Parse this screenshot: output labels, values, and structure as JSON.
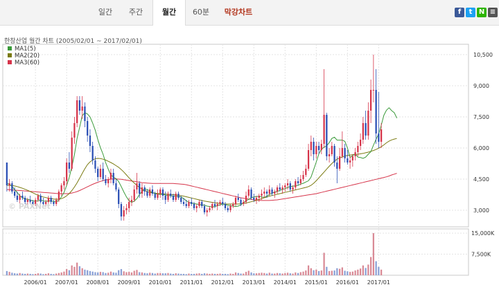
{
  "tabs": [
    {
      "label": "일간"
    },
    {
      "label": "주간"
    },
    {
      "label": "월간",
      "active": true
    },
    {
      "label": "60분"
    },
    {
      "label": "막강차트"
    }
  ],
  "share": [
    {
      "name": "facebook-icon",
      "glyph": "f",
      "color": "#3b5998"
    },
    {
      "name": "twitter-icon",
      "glyph": "t",
      "color": "#1da1f2"
    },
    {
      "name": "naver-icon",
      "glyph": "N",
      "color": "#2db400"
    },
    {
      "name": "share-more-icon",
      "glyph": "≡",
      "color": "#555555"
    }
  ],
  "chart_title": "한창산업 월간 차트 (2005/02/01 ~ 2017/02/01)",
  "watermark": "© PAXNet",
  "chart_data": {
    "type": "candlestick",
    "legend": [
      {
        "name": "MA1(5)",
        "color": "#3a9a3a"
      },
      {
        "name": "MA2(20)",
        "color": "#7a7a10"
      },
      {
        "name": "MA3(60)",
        "color": "#d6344a"
      }
    ],
    "x_ticks": [
      "2006/01",
      "2007/01",
      "2008/01",
      "2009/01",
      "2010/01",
      "2011/01",
      "2012/01",
      "2013/01",
      "2014/01",
      "2015/01",
      "2016/01",
      "2017/01"
    ],
    "y_ticks": [
      "10,500",
      "9,000",
      "7,500",
      "6,000",
      "4,500",
      "3,000"
    ],
    "y_tick_values": [
      10500,
      9000,
      7500,
      6000,
      4500,
      3000
    ],
    "ylim": [
      2200,
      11000
    ],
    "volume_ticks": [
      "15,000K",
      "7,500K"
    ],
    "volume_tick_values": [
      15000,
      7500
    ],
    "volume_ylim": [
      0,
      16500
    ],
    "up_color": "#d6344a",
    "down_color": "#2a4fb5",
    "start_month": "2005-02",
    "candles": [
      [
        5300,
        5300,
        3900,
        4200
      ],
      [
        4200,
        4500,
        3900,
        4300
      ],
      [
        4300,
        4400,
        3800,
        3900
      ],
      [
        3900,
        4100,
        3600,
        3700
      ],
      [
        3700,
        3900,
        3400,
        3500
      ],
      [
        3500,
        3800,
        3300,
        3700
      ],
      [
        3700,
        3900,
        3500,
        3600
      ],
      [
        3600,
        3700,
        3300,
        3400
      ],
      [
        3400,
        3600,
        3200,
        3500
      ],
      [
        3500,
        3700,
        3300,
        3400
      ],
      [
        3400,
        3500,
        3200,
        3300
      ],
      [
        3300,
        3600,
        3200,
        3500
      ],
      [
        3500,
        3800,
        3400,
        3700
      ],
      [
        3700,
        3800,
        3300,
        3400
      ],
      [
        3400,
        3600,
        3200,
        3300
      ],
      [
        3300,
        3500,
        3200,
        3400
      ],
      [
        3400,
        3700,
        3300,
        3600
      ],
      [
        3600,
        3700,
        3300,
        3400
      ],
      [
        3400,
        3500,
        3200,
        3300
      ],
      [
        3300,
        3600,
        3200,
        3500
      ],
      [
        3500,
        4000,
        3400,
        3900
      ],
      [
        3900,
        4300,
        3700,
        4200
      ],
      [
        4200,
        4600,
        4000,
        4400
      ],
      [
        4400,
        5500,
        4200,
        5300
      ],
      [
        5300,
        5800,
        4800,
        5000
      ],
      [
        5000,
        6800,
        4900,
        6500
      ],
      [
        6500,
        7500,
        6200,
        7200
      ],
      [
        7200,
        8500,
        7000,
        8300
      ],
      [
        8300,
        8500,
        7600,
        7800
      ],
      [
        7800,
        8500,
        7400,
        8000
      ],
      [
        8000,
        8200,
        7000,
        7300
      ],
      [
        7300,
        7500,
        6300,
        6600
      ],
      [
        6600,
        6900,
        5800,
        6100
      ],
      [
        6100,
        6300,
        5200,
        5400
      ],
      [
        5400,
        5600,
        4800,
        5000
      ],
      [
        5000,
        5100,
        4400,
        4600
      ],
      [
        4600,
        5200,
        4500,
        5000
      ],
      [
        5000,
        5300,
        4400,
        4500
      ],
      [
        4500,
        4700,
        4200,
        4300
      ],
      [
        4300,
        4600,
        4100,
        4500
      ],
      [
        4500,
        5000,
        4300,
        4800
      ],
      [
        4800,
        5000,
        4200,
        4300
      ],
      [
        4300,
        4500,
        3900,
        4000
      ],
      [
        4000,
        4100,
        3100,
        3300
      ],
      [
        3300,
        3400,
        2500,
        2700
      ],
      [
        2700,
        3200,
        2500,
        3000
      ],
      [
        3000,
        3300,
        2800,
        3100
      ],
      [
        3100,
        3600,
        2900,
        3400
      ],
      [
        3400,
        3700,
        3200,
        3500
      ],
      [
        3500,
        4200,
        3400,
        4000
      ],
      [
        4000,
        4800,
        3800,
        4300
      ],
      [
        4300,
        4400,
        3600,
        3800
      ],
      [
        3800,
        4300,
        3600,
        4100
      ],
      [
        4100,
        4200,
        3700,
        3900
      ],
      [
        3900,
        4000,
        3600,
        3700
      ],
      [
        3700,
        4100,
        3600,
        4000
      ],
      [
        4000,
        4200,
        3700,
        3800
      ],
      [
        3800,
        3900,
        3500,
        3600
      ],
      [
        3600,
        4000,
        3500,
        3800
      ],
      [
        3800,
        4100,
        3600,
        4000
      ],
      [
        4000,
        4100,
        3500,
        3700
      ],
      [
        3700,
        3900,
        3300,
        3500
      ],
      [
        3500,
        3900,
        3400,
        3800
      ],
      [
        3800,
        4000,
        3600,
        3700
      ],
      [
        3700,
        3800,
        3400,
        3500
      ],
      [
        3500,
        3900,
        3400,
        3800
      ],
      [
        3800,
        3900,
        3500,
        3600
      ],
      [
        3600,
        3700,
        3300,
        3400
      ],
      [
        3400,
        3600,
        3200,
        3300
      ],
      [
        3300,
        3500,
        3100,
        3200
      ],
      [
        3200,
        3500,
        3100,
        3400
      ],
      [
        3400,
        3600,
        3200,
        3300
      ],
      [
        3300,
        3400,
        3000,
        3100
      ],
      [
        3100,
        3300,
        2900,
        3200
      ],
      [
        3200,
        3500,
        3100,
        3400
      ],
      [
        3400,
        3500,
        3100,
        3200
      ],
      [
        3200,
        3300,
        2800,
        2900
      ],
      [
        2900,
        3100,
        2700,
        3000
      ],
      [
        3000,
        3200,
        2900,
        3100
      ],
      [
        3100,
        3400,
        3000,
        3300
      ],
      [
        3300,
        3500,
        3100,
        3200
      ],
      [
        3200,
        3400,
        3000,
        3300
      ],
      [
        3300,
        3500,
        3200,
        3400
      ],
      [
        3400,
        3600,
        3200,
        3300
      ],
      [
        3300,
        3400,
        3000,
        3100
      ],
      [
        3100,
        3200,
        2900,
        3000
      ],
      [
        3000,
        3300,
        2900,
        3200
      ],
      [
        3200,
        3400,
        3100,
        3300
      ],
      [
        3300,
        3700,
        3200,
        3600
      ],
      [
        3600,
        3800,
        3400,
        3500
      ],
      [
        3500,
        3600,
        3200,
        3300
      ],
      [
        3300,
        3500,
        3200,
        3400
      ],
      [
        3400,
        3900,
        3300,
        3700
      ],
      [
        3700,
        4200,
        3600,
        4000
      ],
      [
        4000,
        4100,
        3500,
        3600
      ],
      [
        3600,
        3800,
        3400,
        3500
      ],
      [
        3500,
        3700,
        3300,
        3600
      ],
      [
        3600,
        3800,
        3400,
        3700
      ],
      [
        3700,
        4000,
        3500,
        3800
      ],
      [
        3800,
        4100,
        3600,
        3900
      ],
      [
        3900,
        4000,
        3600,
        3800
      ],
      [
        3800,
        4200,
        3700,
        4000
      ],
      [
        4000,
        4100,
        3700,
        3800
      ],
      [
        3800,
        4000,
        3600,
        3900
      ],
      [
        3900,
        4200,
        3800,
        4100
      ],
      [
        4100,
        4300,
        3900,
        4000
      ],
      [
        4000,
        4200,
        3800,
        4100
      ],
      [
        4100,
        4300,
        3900,
        4200
      ],
      [
        4200,
        4500,
        4000,
        4300
      ],
      [
        4300,
        4400,
        3900,
        4000
      ],
      [
        4000,
        4200,
        3800,
        4100
      ],
      [
        4100,
        4500,
        4000,
        4400
      ],
      [
        4400,
        4600,
        4200,
        4300
      ],
      [
        4300,
        4700,
        4200,
        4500
      ],
      [
        4500,
        4900,
        4400,
        4700
      ],
      [
        4700,
        5200,
        4600,
        5000
      ],
      [
        5000,
        6200,
        4900,
        5900
      ],
      [
        5900,
        6600,
        5600,
        6300
      ],
      [
        6300,
        6500,
        5400,
        5700
      ],
      [
        5700,
        6300,
        5500,
        6100
      ],
      [
        6100,
        6300,
        5700,
        5900
      ],
      [
        5900,
        6400,
        5700,
        6200
      ],
      [
        6200,
        9800,
        6000,
        7600
      ],
      [
        7600,
        7700,
        5400,
        5600
      ],
      [
        5600,
        6000,
        5300,
        5700
      ],
      [
        5700,
        6300,
        5600,
        6100
      ],
      [
        6100,
        6200,
        5100,
        5300
      ],
      [
        5300,
        5600,
        4300,
        5000
      ],
      [
        5000,
        6000,
        4900,
        5600
      ],
      [
        5600,
        6800,
        5500,
        6000
      ],
      [
        6000,
        6200,
        5300,
        5500
      ],
      [
        5500,
        5900,
        5200,
        5300
      ],
      [
        5300,
        5600,
        5000,
        5400
      ],
      [
        5400,
        5700,
        5100,
        5600
      ],
      [
        5600,
        6000,
        5400,
        5800
      ],
      [
        5800,
        6300,
        5600,
        6100
      ],
      [
        6100,
        6700,
        5900,
        6400
      ],
      [
        6400,
        7500,
        6200,
        7200
      ],
      [
        7200,
        7800,
        6400,
        6600
      ],
      [
        6600,
        8200,
        6400,
        7800
      ],
      [
        7800,
        9300,
        7200,
        8800
      ],
      [
        8800,
        10500,
        8200,
        8800
      ],
      [
        8800,
        9800,
        6200,
        6700
      ],
      [
        6700,
        8700,
        6000,
        6300
      ],
      [
        6300,
        7200,
        6000,
        6900
      ]
    ],
    "volumes": [
      1500,
      1200,
      900,
      700,
      600,
      800,
      600,
      500,
      600,
      500,
      400,
      500,
      700,
      600,
      400,
      500,
      700,
      500,
      400,
      600,
      800,
      1000,
      1300,
      2200,
      1800,
      3500,
      3000,
      4500,
      3200,
      2500,
      2000,
      1800,
      1500,
      1300,
      1100,
      1000,
      1200,
      1100,
      800,
      900,
      1300,
      1000,
      900,
      1800,
      2200,
      1400,
      1100,
      1200,
      1000,
      1600,
      1900,
      1100,
      1000,
      800,
      700,
      900,
      800,
      600,
      800,
      800,
      700,
      700,
      800,
      600,
      500,
      700,
      600,
      500,
      500,
      400,
      600,
      500,
      500,
      600,
      700,
      500,
      700,
      600,
      500,
      600,
      500,
      500,
      600,
      500,
      500,
      400,
      600,
      500,
      1000,
      800,
      600,
      600,
      1200,
      1600,
      1000,
      700,
      700,
      800,
      900,
      800,
      600,
      900,
      600,
      600,
      800,
      700,
      600,
      800,
      900,
      700,
      600,
      1000,
      800,
      1100,
      1300,
      1700,
      3500,
      2500,
      1800,
      2000,
      1500,
      1700,
      8000,
      3000,
      1500,
      1600,
      1700,
      2500,
      2300,
      2800,
      1600,
      1400,
      1200,
      1300,
      1700,
      2000,
      2400,
      3500,
      2600,
      3800,
      6500,
      15000,
      5000,
      3000,
      2000
    ],
    "ma5": [
      4300,
      4250,
      4150,
      4000,
      3850,
      3700,
      3600,
      3550,
      3520,
      3500,
      3450,
      3430,
      3460,
      3500,
      3450,
      3430,
      3440,
      3460,
      3420,
      3400,
      3480,
      3650,
      3860,
      4200,
      4580,
      5100,
      5680,
      6460,
      7000,
      7560,
      7700,
      7640,
      7500,
      7200,
      6860,
      6400,
      6020,
      5700,
      5300,
      4980,
      4700,
      4600,
      4520,
      4380,
      4140,
      3880,
      3640,
      3460,
      3380,
      3440,
      3560,
      3760,
      3900,
      4020,
      4000,
      3920,
      3860,
      3800,
      3780,
      3760,
      3770,
      3730,
      3710,
      3700,
      3680,
      3680,
      3660,
      3640,
      3560,
      3460,
      3380,
      3340,
      3320,
      3300,
      3280,
      3260,
      3240,
      3200,
      3180,
      3160,
      3180,
      3220,
      3260,
      3300,
      3280,
      3240,
      3220,
      3200,
      3180,
      3200,
      3260,
      3360,
      3460,
      3520,
      3600,
      3640,
      3660,
      3680,
      3640,
      3620,
      3680,
      3760,
      3820,
      3880,
      3900,
      3960,
      4000,
      4040,
      4100,
      4140,
      4160,
      4180,
      4200,
      4260,
      4300,
      4360,
      4420,
      4600,
      4960,
      5320,
      5720,
      5940,
      6040,
      6100,
      6260,
      6460,
      6520,
      6380,
      6380,
      6380,
      6320,
      6000,
      5540,
      5640,
      5720,
      5560,
      5540,
      5500,
      5560,
      5700,
      5820,
      6140,
      6420,
      6680,
      7100,
      7580,
      7820,
      7940,
      7800,
      7700,
      7440
    ],
    "ma20": [
      4200,
      4200,
      4190,
      4170,
      4140,
      4100,
      4060,
      4010,
      3960,
      3900,
      3840,
      3780,
      3720,
      3680,
      3640,
      3610,
      3580,
      3560,
      3540,
      3530,
      3530,
      3560,
      3610,
      3700,
      3800,
      3950,
      4120,
      4320,
      4540,
      4780,
      5000,
      5200,
      5330,
      5420,
      5480,
      5500,
      5490,
      5460,
      5420,
      5360,
      5300,
      5230,
      5150,
      5070,
      4960,
      4840,
      4700,
      4560,
      4430,
      4310,
      4200,
      4100,
      4020,
      3960,
      3900,
      3860,
      3840,
      3820,
      3810,
      3800,
      3790,
      3780,
      3770,
      3760,
      3750,
      3740,
      3720,
      3700,
      3680,
      3650,
      3620,
      3590,
      3560,
      3530,
      3500,
      3470,
      3440,
      3420,
      3400,
      3380,
      3360,
      3340,
      3320,
      3310,
      3300,
      3300,
      3300,
      3300,
      3300,
      3300,
      3310,
      3330,
      3350,
      3380,
      3410,
      3440,
      3480,
      3520,
      3560,
      3600,
      3640,
      3680,
      3710,
      3740,
      3770,
      3800,
      3830,
      3860,
      3890,
      3920,
      3950,
      3980,
      4010,
      4040,
      4070,
      4100,
      4140,
      4200,
      4300,
      4420,
      4560,
      4700,
      4840,
      4980,
      5120,
      5250,
      5370,
      5460,
      5520,
      5570,
      5610,
      5640,
      5660,
      5680,
      5690,
      5700,
      5720,
      5740,
      5770,
      5800,
      5840,
      5880,
      5930,
      5990,
      6060,
      6150,
      6250,
      6330,
      6390,
      6430,
      6460
    ],
    "ma60": [
      4000,
      3990,
      3980,
      3970,
      3960,
      3950,
      3940,
      3930,
      3920,
      3910,
      3900,
      3890,
      3880,
      3870,
      3860,
      3850,
      3840,
      3830,
      3820,
      3810,
      3800,
      3800,
      3800,
      3800,
      3810,
      3830,
      3860,
      3900,
      3950,
      4010,
      4070,
      4130,
      4190,
      4250,
      4300,
      4350,
      4390,
      4430,
      4460,
      4480,
      4500,
      4510,
      4510,
      4500,
      4490,
      4470,
      4450,
      4430,
      4410,
      4390,
      4370,
      4350,
      4330,
      4320,
      4310,
      4300,
      4290,
      4290,
      4290,
      4290,
      4290,
      4290,
      4290,
      4290,
      4290,
      4280,
      4270,
      4260,
      4250,
      4230,
      4200,
      4170,
      4140,
      4110,
      4080,
      4050,
      4020,
      3990,
      3960,
      3930,
      3900,
      3870,
      3840,
      3810,
      3780,
      3750,
      3720,
      3690,
      3660,
      3630,
      3600,
      3580,
      3560,
      3540,
      3520,
      3500,
      3490,
      3480,
      3470,
      3470,
      3470,
      3470,
      3480,
      3490,
      3500,
      3520,
      3540,
      3560,
      3580,
      3600,
      3620,
      3640,
      3660,
      3680,
      3700,
      3720,
      3740,
      3760,
      3780,
      3800,
      3830,
      3860,
      3890,
      3920,
      3950,
      3980,
      4010,
      4040,
      4070,
      4100,
      4130,
      4160,
      4190,
      4220,
      4250,
      4280,
      4310,
      4340,
      4370,
      4400,
      4430,
      4460,
      4490,
      4520,
      4550,
      4580,
      4610,
      4650,
      4700,
      4740,
      4780
    ]
  }
}
